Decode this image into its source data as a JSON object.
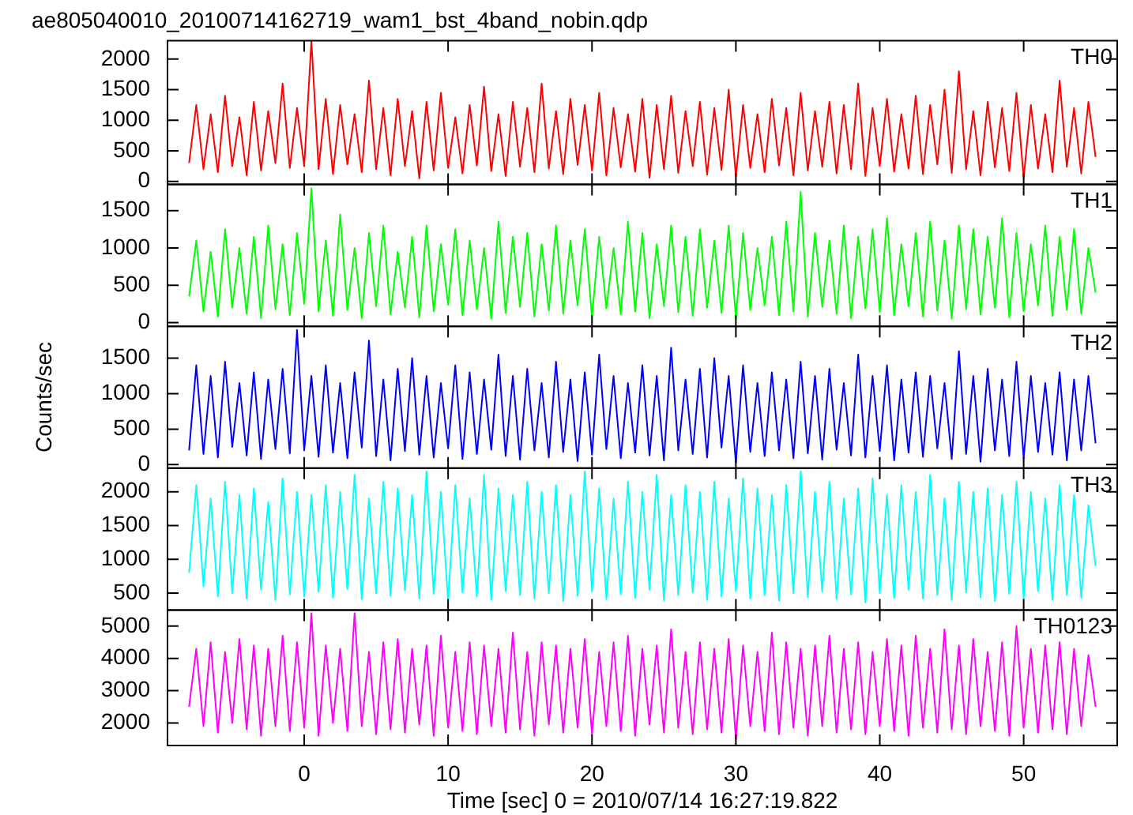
{
  "chart_data": [
    {
      "type": "line",
      "title": "ae805040010_20100714162719_wam1_bst_4band_nobin.qdp",
      "annotations": [
        "TH0"
      ],
      "tick_labels": "y",
      "xlim": [
        -9.5,
        56.5
      ],
      "xticks": [
        0,
        10,
        20,
        30,
        40,
        50
      ],
      "ylim": [
        -50,
        2300
      ],
      "yticks": [
        0,
        500,
        1000,
        1500,
        2000
      ],
      "x": [
        -8,
        -7.5,
        -7,
        -6.5,
        -6,
        -5.5,
        -5,
        -4.5,
        -4,
        -3.5,
        -3,
        -2.5,
        -2,
        -1.5,
        -1,
        -0.5,
        0,
        0.5,
        1,
        1.5,
        2,
        2.5,
        3,
        3.5,
        4,
        4.5,
        5,
        5.5,
        6,
        6.5,
        7,
        7.5,
        8,
        8.5,
        9,
        9.5,
        10,
        10.5,
        11,
        11.5,
        12,
        12.5,
        13,
        13.5,
        14,
        14.5,
        15,
        15.5,
        16,
        16.5,
        17,
        17.5,
        18,
        18.5,
        19,
        19.5,
        20,
        20.5,
        21,
        21.5,
        22,
        22.5,
        23,
        23.5,
        24,
        24.5,
        25,
        25.5,
        26,
        26.5,
        27,
        27.5,
        28,
        28.5,
        29,
        29.5,
        30,
        30.5,
        31,
        31.5,
        32,
        32.5,
        33,
        33.5,
        34,
        34.5,
        35,
        35.5,
        36,
        36.5,
        37,
        37.5,
        38,
        38.5,
        39,
        39.5,
        40,
        40.5,
        41,
        41.5,
        42,
        42.5,
        43,
        43.5,
        44,
        44.5,
        45,
        45.5,
        46,
        46.5,
        47,
        47.5,
        48,
        48.5,
        49,
        49.5,
        50,
        50.5,
        51,
        51.5,
        52,
        52.5,
        53,
        53.5,
        54,
        54.5,
        55
      ],
      "series": [
        {
          "color": "#ff0000",
          "values": [
            300,
            1250,
            200,
            1100,
            150,
            1400,
            250,
            1050,
            100,
            1300,
            180,
            1150,
            300,
            1600,
            220,
            1200,
            250,
            2300,
            200,
            1350,
            120,
            1250,
            280,
            1100,
            150,
            1650,
            200,
            1200,
            100,
            1350,
            250,
            1150,
            50,
            1300,
            180,
            1450,
            220,
            1050,
            130,
            1250,
            260,
            1550,
            170,
            1100,
            90,
            1300,
            240,
            1200,
            150,
            1600,
            210,
            1150,
            120,
            1350,
            270,
            1250,
            180,
            1450,
            100,
            1200,
            230,
            1100,
            160,
            1350,
            60,
            1250,
            200,
            1400,
            140,
            1150,
            250,
            1300,
            110,
            1200,
            190,
            1500,
            80,
            1250,
            220,
            1100,
            150,
            1350,
            260,
            1200,
            100,
            1450,
            180,
            1150,
            240,
            1300,
            130,
            1250,
            200,
            1600,
            90,
            1200,
            250,
            1350,
            160,
            1100,
            210,
            1400,
            120,
            1250,
            280,
            1500,
            140,
            1800,
            200,
            1150,
            100,
            1300,
            230,
            1200,
            170,
            1450,
            60,
            1250,
            210,
            1100,
            150,
            1650,
            240,
            1200,
            130,
            1300,
            400
          ]
        }
      ]
    },
    {
      "type": "line",
      "annotations": [
        "TH1"
      ],
      "tick_labels": "y",
      "xlim": [
        -9.5,
        56.5
      ],
      "xticks": [
        0,
        10,
        20,
        30,
        40,
        50
      ],
      "ylim": [
        -50,
        1850
      ],
      "yticks": [
        0,
        500,
        1000,
        1500
      ],
      "x": [
        -8,
        -7.5,
        -7,
        -6.5,
        -6,
        -5.5,
        -5,
        -4.5,
        -4,
        -3.5,
        -3,
        -2.5,
        -2,
        -1.5,
        -1,
        -0.5,
        0,
        0.5,
        1,
        1.5,
        2,
        2.5,
        3,
        3.5,
        4,
        4.5,
        5,
        5.5,
        6,
        6.5,
        7,
        7.5,
        8,
        8.5,
        9,
        9.5,
        10,
        10.5,
        11,
        11.5,
        12,
        12.5,
        13,
        13.5,
        14,
        14.5,
        15,
        15.5,
        16,
        16.5,
        17,
        17.5,
        18,
        18.5,
        19,
        19.5,
        20,
        20.5,
        21,
        21.5,
        22,
        22.5,
        23,
        23.5,
        24,
        24.5,
        25,
        25.5,
        26,
        26.5,
        27,
        27.5,
        28,
        28.5,
        29,
        29.5,
        30,
        30.5,
        31,
        31.5,
        32,
        32.5,
        33,
        33.5,
        34,
        34.5,
        35,
        35.5,
        36,
        36.5,
        37,
        37.5,
        38,
        38.5,
        39,
        39.5,
        40,
        40.5,
        41,
        41.5,
        42,
        42.5,
        43,
        43.5,
        44,
        44.5,
        45,
        45.5,
        46,
        46.5,
        47,
        47.5,
        48,
        48.5,
        49,
        49.5,
        50,
        50.5,
        51,
        51.5,
        52,
        52.5,
        53,
        53.5,
        54,
        54.5,
        55
      ],
      "series": [
        {
          "color": "#00ff00",
          "values": [
            350,
            1100,
            150,
            950,
            80,
            1250,
            200,
            1000,
            120,
            1150,
            60,
            1300,
            180,
            1050,
            100,
            1200,
            250,
            1800,
            150,
            1100,
            90,
            1450,
            170,
            1000,
            60,
            1200,
            220,
            1300,
            110,
            950,
            200,
            1150,
            70,
            1300,
            150,
            1050,
            240,
            1250,
            100,
            1100,
            180,
            1000,
            50,
            1350,
            130,
            1150,
            210,
            1200,
            80,
            1050,
            160,
            1300,
            120,
            1100,
            230,
            1250,
            70,
            1150,
            190,
            1000,
            110,
            1350,
            150,
            1200,
            60,
            1050,
            220,
            1300,
            140,
            1150,
            90,
            1250,
            200,
            1100,
            130,
            1300,
            60,
            1200,
            170,
            1000,
            230,
            1150,
            100,
            1350,
            150,
            1750,
            80,
            1200,
            210,
            1100,
            120,
            1300,
            60,
            1150,
            190,
            1250,
            140,
            1400,
            100,
            1050,
            220,
            1200,
            80,
            1350,
            160,
            1100,
            50,
            1300,
            180,
            1250,
            110,
            1150,
            200,
            1400,
            70,
            1200,
            150,
            1050,
            230,
            1300,
            90,
            1150,
            170,
            1250,
            120,
            1000,
            400
          ]
        }
      ]
    },
    {
      "type": "line",
      "annotations": [
        "TH2"
      ],
      "ylabel": "Counts/sec",
      "tick_labels": "y",
      "xlim": [
        -9.5,
        56.5
      ],
      "xticks": [
        0,
        10,
        20,
        30,
        40,
        50
      ],
      "ylim": [
        -50,
        1950
      ],
      "yticks": [
        0,
        500,
        1000,
        1500
      ],
      "x": [
        -8,
        -7.5,
        -7,
        -6.5,
        -6,
        -5.5,
        -5,
        -4.5,
        -4,
        -3.5,
        -3,
        -2.5,
        -2,
        -1.5,
        -1,
        -0.5,
        0,
        0.5,
        1,
        1.5,
        2,
        2.5,
        3,
        3.5,
        4,
        4.5,
        5,
        5.5,
        6,
        6.5,
        7,
        7.5,
        8,
        8.5,
        9,
        9.5,
        10,
        10.5,
        11,
        11.5,
        12,
        12.5,
        13,
        13.5,
        14,
        14.5,
        15,
        15.5,
        16,
        16.5,
        17,
        17.5,
        18,
        18.5,
        19,
        19.5,
        20,
        20.5,
        21,
        21.5,
        22,
        22.5,
        23,
        23.5,
        24,
        24.5,
        25,
        25.5,
        26,
        26.5,
        27,
        27.5,
        28,
        28.5,
        29,
        29.5,
        30,
        30.5,
        31,
        31.5,
        32,
        32.5,
        33,
        33.5,
        34,
        34.5,
        35,
        35.5,
        36,
        36.5,
        37,
        37.5,
        38,
        38.5,
        39,
        39.5,
        40,
        40.5,
        41,
        41.5,
        42,
        42.5,
        43,
        43.5,
        44,
        44.5,
        45,
        45.5,
        46,
        46.5,
        47,
        47.5,
        48,
        48.5,
        49,
        49.5,
        50,
        50.5,
        51,
        51.5,
        52,
        52.5,
        53,
        53.5,
        54,
        54.5,
        55
      ],
      "series": [
        {
          "color": "#0000ff",
          "values": [
            200,
            1400,
            150,
            1250,
            100,
            1450,
            250,
            1150,
            130,
            1300,
            80,
            1200,
            220,
            1350,
            160,
            1900,
            200,
            1250,
            110,
            1400,
            170,
            1150,
            90,
            1300,
            240,
            1750,
            120,
            1200,
            60,
            1350,
            190,
            1500,
            140,
            1250,
            100,
            1150,
            230,
            1400,
            80,
            1300,
            150,
            1200,
            210,
            1550,
            120,
            1250,
            70,
            1350,
            200,
            1150,
            100,
            1450,
            180,
            1200,
            50,
            1300,
            140,
            1550,
            220,
            1250,
            90,
            1150,
            170,
            1400,
            130,
            1250,
            60,
            1650,
            200,
            1200,
            150,
            1350,
            100,
            1500,
            240,
            1250,
            30,
            1400,
            180,
            1150,
            120,
            1300,
            200,
            1200,
            90,
            1450,
            160,
            1250,
            70,
            1350,
            210,
            1150,
            130,
            1550,
            100,
            1250,
            190,
            1400,
            60,
            1200,
            170,
            1300,
            110,
            1250,
            230,
            1150,
            80,
            1600,
            150,
            1250,
            40,
            1350,
            200,
            1200,
            120,
            1450,
            90,
            1250,
            180,
            1150,
            140,
            1300,
            60,
            1200,
            200,
            1250,
            300
          ]
        }
      ]
    },
    {
      "type": "line",
      "annotations": [
        "TH3"
      ],
      "tick_labels": "y",
      "xlim": [
        -9.5,
        56.5
      ],
      "xticks": [
        0,
        10,
        20,
        30,
        40,
        50
      ],
      "ylim": [
        250,
        2350
      ],
      "yticks": [
        500,
        1000,
        1500,
        2000
      ],
      "x": [
        -8,
        -7.5,
        -7,
        -6.5,
        -6,
        -5.5,
        -5,
        -4.5,
        -4,
        -3.5,
        -3,
        -2.5,
        -2,
        -1.5,
        -1,
        -0.5,
        0,
        0.5,
        1,
        1.5,
        2,
        2.5,
        3,
        3.5,
        4,
        4.5,
        5,
        5.5,
        6,
        6.5,
        7,
        7.5,
        8,
        8.5,
        9,
        9.5,
        10,
        10.5,
        11,
        11.5,
        12,
        12.5,
        13,
        13.5,
        14,
        14.5,
        15,
        15.5,
        16,
        16.5,
        17,
        17.5,
        18,
        18.5,
        19,
        19.5,
        20,
        20.5,
        21,
        21.5,
        22,
        22.5,
        23,
        23.5,
        24,
        24.5,
        25,
        25.5,
        26,
        26.5,
        27,
        27.5,
        28,
        28.5,
        29,
        29.5,
        30,
        30.5,
        31,
        31.5,
        32,
        32.5,
        33,
        33.5,
        34,
        34.5,
        35,
        35.5,
        36,
        36.5,
        37,
        37.5,
        38,
        38.5,
        39,
        39.5,
        40,
        40.5,
        41,
        41.5,
        42,
        42.5,
        43,
        43.5,
        44,
        44.5,
        45,
        45.5,
        46,
        46.5,
        47,
        47.5,
        48,
        48.5,
        49,
        49.5,
        50,
        50.5,
        51,
        51.5,
        52,
        52.5,
        53,
        53.5,
        54,
        54.5,
        55
      ],
      "series": [
        {
          "color": "#00ffff",
          "values": [
            800,
            2100,
            600,
            1900,
            450,
            2150,
            500,
            1950,
            420,
            2050,
            550,
            1850,
            400,
            2200,
            480,
            2000,
            450,
            1950,
            520,
            2100,
            430,
            2000,
            560,
            2250,
            410,
            1900,
            500,
            2150,
            460,
            2050,
            540,
            1950,
            420,
            2300,
            490,
            2000,
            380,
            2100,
            510,
            1900,
            450,
            2250,
            400,
            2050,
            530,
            1950,
            470,
            2150,
            420,
            2000,
            500,
            2100,
            380,
            1950,
            460,
            2300,
            520,
            2050,
            410,
            1900,
            480,
            2150,
            430,
            2000,
            550,
            2250,
            390,
            1950,
            470,
            2100,
            510,
            2000,
            400,
            2150,
            450,
            1900,
            530,
            2200,
            420,
            2050,
            470,
            1950,
            390,
            2100,
            500,
            2300,
            440,
            2000,
            520,
            2150,
            410,
            1900,
            480,
            2050,
            360,
            2200,
            500,
            1950,
            430,
            2100,
            550,
            2000,
            420,
            2250,
            470,
            1900,
            400,
            2150,
            510,
            2000,
            440,
            2050,
            380,
            1950,
            490,
            2150,
            420,
            2000,
            530,
            1900,
            400,
            2100,
            470,
            1950,
            430,
            1800,
            900
          ]
        }
      ]
    },
    {
      "type": "line",
      "annotations": [
        "TH0123"
      ],
      "xlabel": "Time [sec] 0 = 2010/07/14 16:27:19.822",
      "xlim": [
        -9.5,
        56.5
      ],
      "xticks": [
        0,
        10,
        20,
        30,
        40,
        50
      ],
      "ylim": [
        1300,
        5500
      ],
      "yticks": [
        2000,
        3000,
        4000,
        5000
      ],
      "x": [
        -8,
        -7.5,
        -7,
        -6.5,
        -6,
        -5.5,
        -5,
        -4.5,
        -4,
        -3.5,
        -3,
        -2.5,
        -2,
        -1.5,
        -1,
        -0.5,
        0,
        0.5,
        1,
        1.5,
        2,
        2.5,
        3,
        3.5,
        4,
        4.5,
        5,
        5.5,
        6,
        6.5,
        7,
        7.5,
        8,
        8.5,
        9,
        9.5,
        10,
        10.5,
        11,
        11.5,
        12,
        12.5,
        13,
        13.5,
        14,
        14.5,
        15,
        15.5,
        16,
        16.5,
        17,
        17.5,
        18,
        18.5,
        19,
        19.5,
        20,
        20.5,
        21,
        21.5,
        22,
        22.5,
        23,
        23.5,
        24,
        24.5,
        25,
        25.5,
        26,
        26.5,
        27,
        27.5,
        28,
        28.5,
        29,
        29.5,
        30,
        30.5,
        31,
        31.5,
        32,
        32.5,
        33,
        33.5,
        34,
        34.5,
        35,
        35.5,
        36,
        36.5,
        37,
        37.5,
        38,
        38.5,
        39,
        39.5,
        40,
        40.5,
        41,
        41.5,
        42,
        42.5,
        43,
        43.5,
        44,
        44.5,
        45,
        45.5,
        46,
        46.5,
        47,
        47.5,
        48,
        48.5,
        49,
        49.5,
        50,
        50.5,
        51,
        51.5,
        52,
        52.5,
        53,
        53.5,
        54,
        54.5,
        55
      ],
      "series": [
        {
          "color": "#ff00ff",
          "values": [
            2500,
            4300,
            1900,
            4500,
            1700,
            4200,
            2000,
            4600,
            1800,
            4400,
            1600,
            4300,
            1900,
            4700,
            1750,
            4500,
            1850,
            5400,
            1600,
            4400,
            2000,
            4300,
            1750,
            5400,
            1900,
            4200,
            1650,
            4500,
            1800,
            4600,
            1700,
            4300,
            1950,
            4400,
            1600,
            4700,
            1850,
            4200,
            1750,
            4500,
            1650,
            4400,
            1900,
            4300,
            1700,
            4800,
            1800,
            4200,
            1600,
            4500,
            1950,
            4400,
            1700,
            4300,
            1850,
            4600,
            1650,
            4200,
            1900,
            4500,
            1750,
            4700,
            1600,
            4300,
            1950,
            4400,
            1700,
            4900,
            1850,
            4200,
            1650,
            4500,
            1800,
            4300,
            1700,
            4600,
            1500,
            4400,
            1900,
            4200,
            1750,
            4800,
            1650,
            4500,
            1850,
            4300,
            1600,
            4400,
            1900,
            4700,
            1700,
            4300,
            1800,
            4500,
            1650,
            4200,
            1900,
            4600,
            1750,
            4400,
            1600,
            4700,
            1850,
            4300,
            1700,
            4900,
            1800,
            4400,
            1650,
            4600,
            1900,
            4200,
            1750,
            4500,
            1600,
            5000,
            1850,
            4300,
            1700,
            4400,
            1800,
            4500,
            1650,
            4300,
            1900,
            4100,
            2500
          ]
        }
      ]
    }
  ]
}
